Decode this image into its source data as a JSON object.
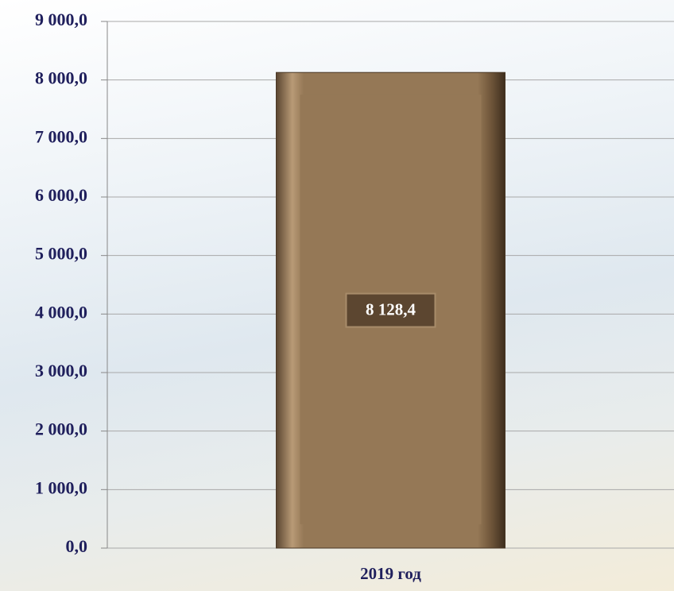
{
  "chart_data": {
    "type": "bar",
    "categories": [
      "2019 год"
    ],
    "values": [
      8128.4
    ],
    "value_labels": [
      "8 128,4"
    ],
    "color": "#957856",
    "ylim": [
      0,
      9000
    ],
    "yticks": [
      {
        "value": 0,
        "label": "0,0"
      },
      {
        "value": 1000,
        "label": "1 000,0"
      },
      {
        "value": 2000,
        "label": "2 000,0"
      },
      {
        "value": 3000,
        "label": "3 000,0"
      },
      {
        "value": 4000,
        "label": "4 000,0"
      },
      {
        "value": 5000,
        "label": "5 000,0"
      },
      {
        "value": 6000,
        "label": "6 000,0"
      },
      {
        "value": 7000,
        "label": "7 000,0"
      },
      {
        "value": 8000,
        "label": "8 000,0"
      },
      {
        "value": 9000,
        "label": "9 000,0"
      }
    ],
    "grid": true
  }
}
